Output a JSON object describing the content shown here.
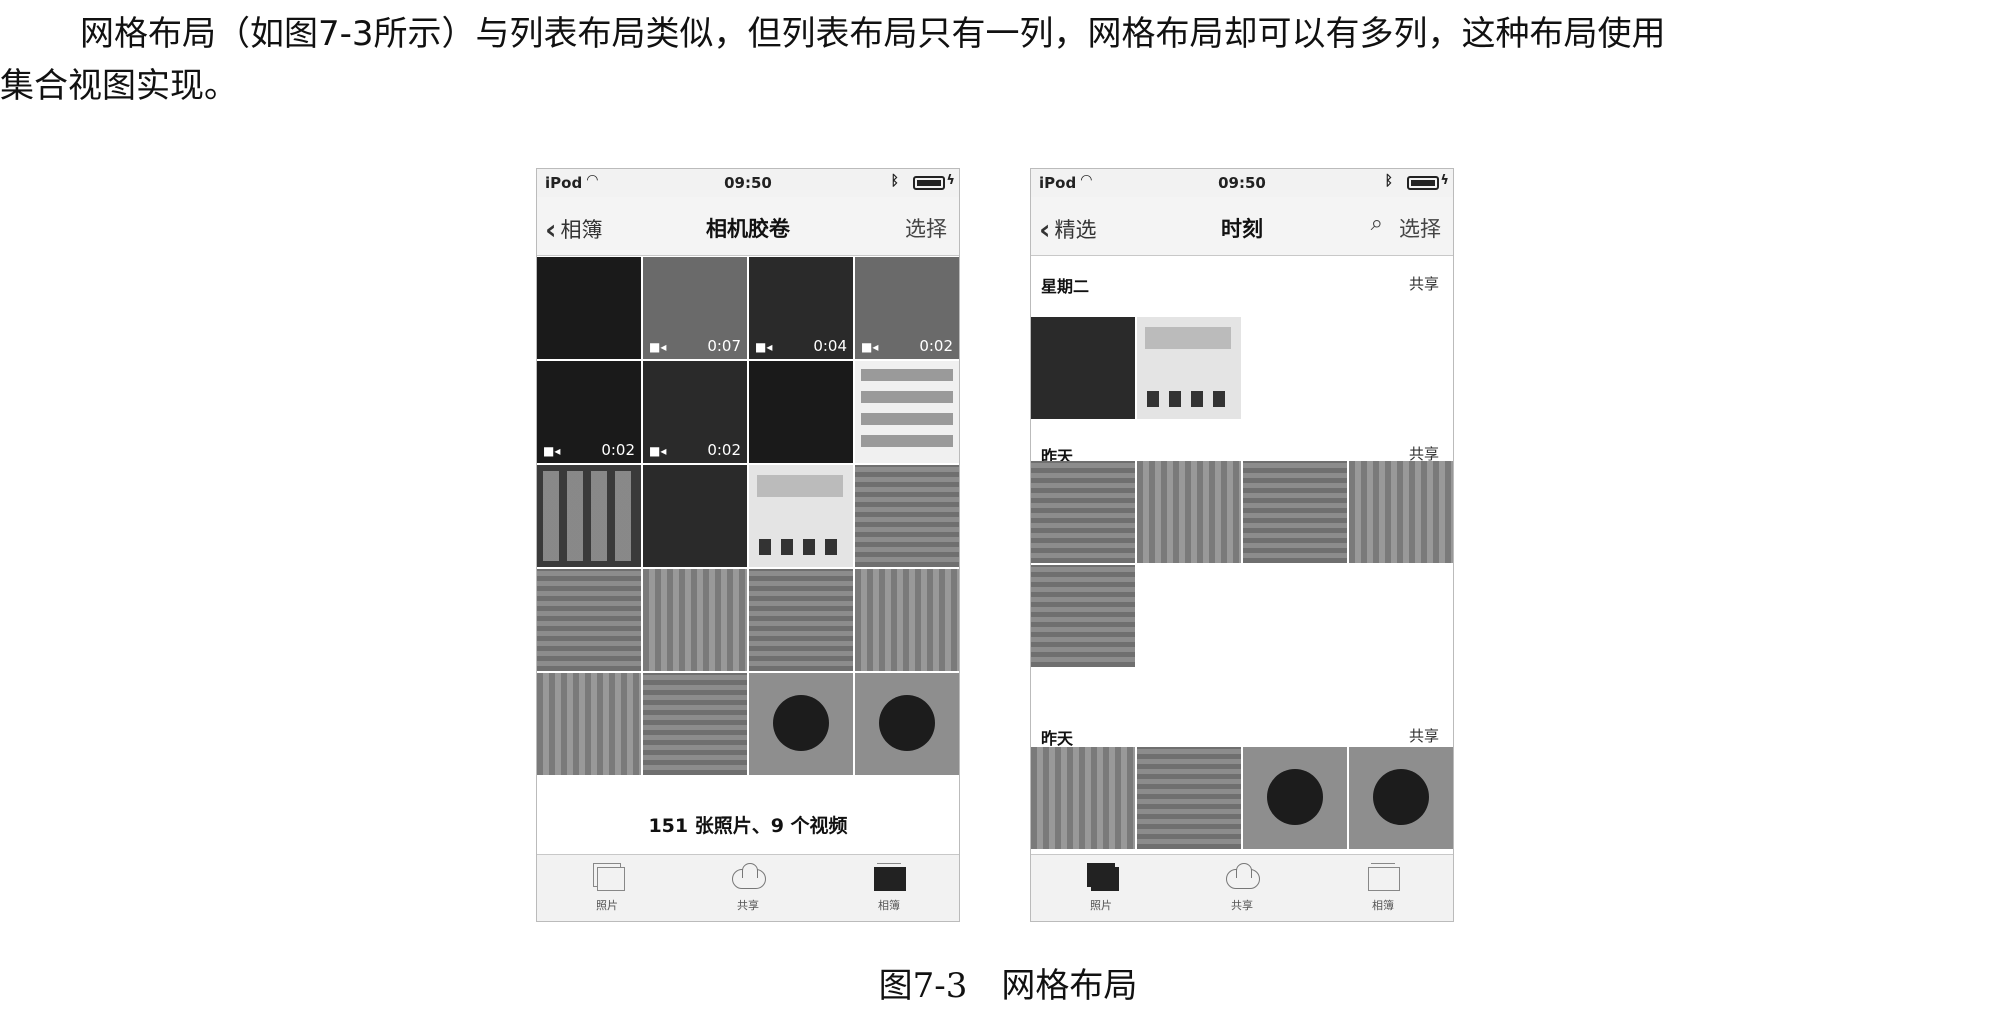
{
  "paragraph": {
    "line1": "网格布局（如图7-3所示）与列表布局类似，但列表布局只有一列，网格布局却可以有多列，这种布局使用",
    "line2": "集合视图实现。"
  },
  "left_phone": {
    "status": {
      "carrier": "iPod",
      "time": "09:50"
    },
    "nav": {
      "back": "相簿",
      "title": "相机胶卷",
      "action": "选择"
    },
    "durations": [
      "0:07",
      "0:04",
      "0:02",
      "0:02",
      "0:02"
    ],
    "summary": "151 张照片、9 个视频",
    "tabs": [
      "照片",
      "共享",
      "相簿"
    ]
  },
  "right_phone": {
    "status": {
      "carrier": "iPod",
      "time": "09:50"
    },
    "nav": {
      "back": "精选",
      "title": "时刻",
      "action": "选择"
    },
    "sections": [
      {
        "day": "星期二",
        "share": "共享"
      },
      {
        "day": "昨天",
        "share": "共享"
      },
      {
        "day": "昨天",
        "share": "共享"
      }
    ],
    "tabs": [
      "照片",
      "共享",
      "相簿"
    ]
  },
  "caption": "图7-3　网格布局"
}
